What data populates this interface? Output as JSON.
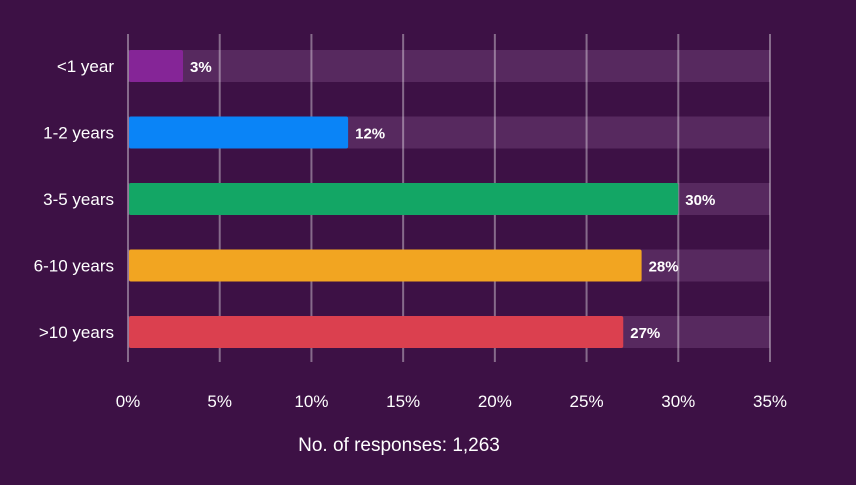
{
  "chart_data": {
    "type": "bar",
    "orientation": "horizontal",
    "categories": [
      "<1 year",
      "1-2 years",
      "3-5 years",
      "6-10 years",
      ">10 years"
    ],
    "values": [
      3,
      12,
      30,
      28,
      27
    ],
    "value_labels": [
      "3%",
      "12%",
      "30%",
      "28%",
      "27%"
    ],
    "colors": [
      "#852597",
      "#0a84f7",
      "#13a665",
      "#f2a521",
      "#db404f"
    ],
    "xlim": [
      0,
      35
    ],
    "xticks": [
      0,
      5,
      10,
      15,
      20,
      25,
      30,
      35
    ],
    "xtick_labels": [
      "0%",
      "5%",
      "10%",
      "15%",
      "20%",
      "25%",
      "30%",
      "35%"
    ],
    "grid": true,
    "track_color": "#57295f",
    "footnote": "No. of responses: 1,263"
  }
}
